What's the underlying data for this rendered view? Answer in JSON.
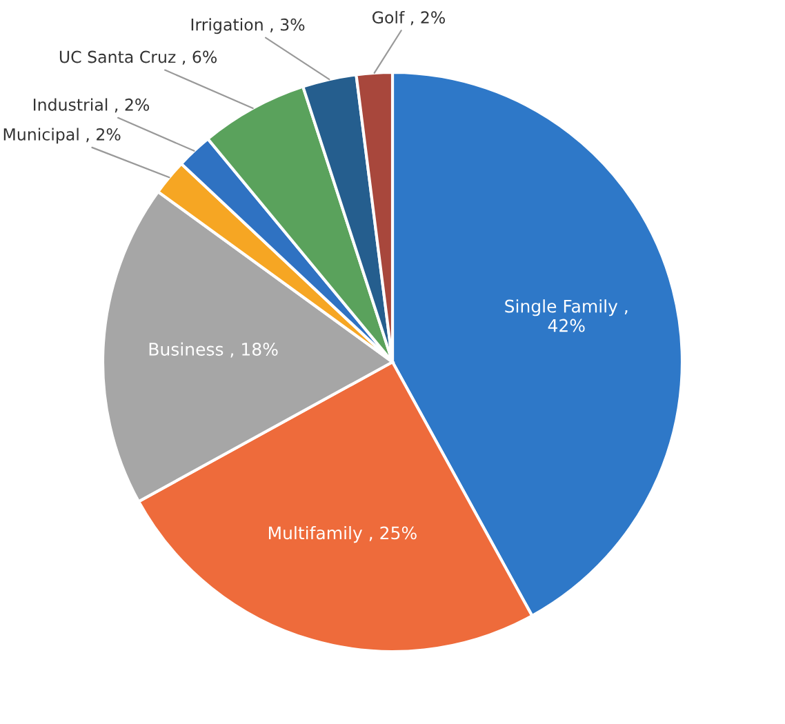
{
  "chart_data": {
    "type": "pie",
    "categories": [
      "Single Family",
      "Multifamily",
      "Business",
      "Municipal",
      "Industrial",
      "UC Santa Cruz",
      "Irrigation",
      "Golf"
    ],
    "values": [
      42,
      25,
      18,
      2,
      2,
      6,
      3,
      2
    ],
    "colors": [
      "#2e78c8",
      "#ee6b3b",
      "#a6a6a6",
      "#f6a623",
      "#2f72c2",
      "#5aa25c",
      "#255e8e",
      "#a8473c"
    ],
    "value_labels": [
      ",\n42%",
      ", 25%",
      ", 18%",
      ", 2%",
      ", 2%",
      ", 6%",
      ", 3%",
      ", 2%"
    ],
    "legend": false
  }
}
